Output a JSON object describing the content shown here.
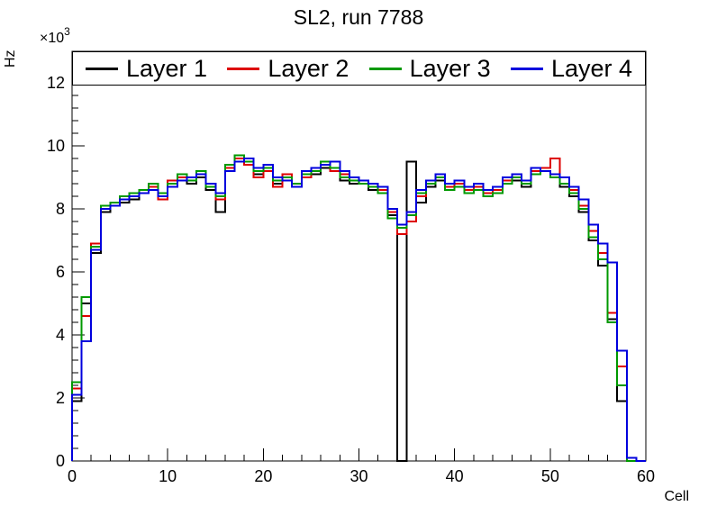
{
  "chart_data": {
    "type": "line",
    "style": "step-histogram",
    "title": "SL2, run 7788",
    "xlabel": "Cell",
    "ylabel": "Hz",
    "y_multiplier": {
      "base": "×10",
      "exp": "3"
    },
    "xlim": [
      0,
      60
    ],
    "ylim": [
      0,
      13
    ],
    "xticks": [
      0,
      10,
      20,
      30,
      40,
      50,
      60
    ],
    "yticks": [
      0,
      2,
      4,
      6,
      8,
      10,
      12
    ],
    "bin_width": 1,
    "grid": false,
    "legend_position": "top",
    "series": [
      {
        "name": "Layer 1",
        "color": "#000000",
        "values": [
          1.9,
          5.0,
          6.6,
          7.9,
          8.1,
          8.2,
          8.3,
          8.5,
          8.6,
          8.4,
          8.7,
          8.9,
          8.8,
          9.0,
          8.6,
          7.9,
          9.2,
          9.5,
          9.4,
          9.1,
          9.3,
          8.8,
          9.0,
          8.7,
          9.0,
          9.1,
          9.3,
          9.2,
          8.9,
          8.8,
          8.9,
          8.6,
          8.5,
          7.8,
          0.0,
          9.5,
          8.2,
          8.7,
          8.9,
          8.6,
          8.7,
          8.5,
          8.8,
          8.4,
          8.5,
          8.8,
          8.9,
          8.7,
          9.1,
          9.2,
          9.0,
          8.7,
          8.4,
          7.9,
          7.0,
          6.2,
          4.5,
          1.9,
          0.0,
          0.0
        ]
      },
      {
        "name": "Layer 2",
        "color": "#dd0000",
        "values": [
          2.3,
          4.6,
          6.9,
          8.0,
          8.2,
          8.3,
          8.5,
          8.6,
          8.7,
          8.3,
          8.9,
          9.0,
          8.9,
          9.1,
          8.7,
          8.3,
          9.3,
          9.6,
          9.4,
          9.0,
          9.2,
          8.7,
          9.1,
          8.8,
          9.0,
          9.3,
          9.4,
          9.2,
          9.1,
          8.9,
          8.8,
          8.8,
          8.6,
          7.9,
          7.2,
          7.6,
          8.4,
          8.8,
          9.0,
          8.7,
          8.8,
          8.6,
          8.7,
          8.5,
          8.6,
          8.9,
          9.0,
          8.8,
          9.2,
          9.3,
          9.6,
          9.0,
          8.6,
          8.1,
          7.3,
          6.6,
          4.7,
          3.0,
          0.0,
          0.0
        ]
      },
      {
        "name": "Layer 3",
        "color": "#009900",
        "values": [
          2.5,
          5.2,
          6.8,
          8.1,
          8.2,
          8.4,
          8.5,
          8.6,
          8.8,
          8.5,
          8.8,
          9.1,
          8.9,
          9.2,
          8.7,
          8.4,
          9.4,
          9.7,
          9.5,
          9.2,
          9.3,
          8.9,
          9.0,
          8.8,
          9.1,
          9.2,
          9.5,
          9.3,
          9.0,
          8.9,
          8.8,
          8.7,
          8.5,
          7.7,
          7.4,
          7.8,
          8.5,
          8.8,
          9.0,
          8.6,
          8.7,
          8.5,
          8.6,
          8.4,
          8.5,
          8.8,
          9.0,
          8.8,
          9.1,
          9.2,
          9.0,
          8.8,
          8.5,
          8.0,
          7.1,
          6.4,
          4.4,
          2.4,
          0.0,
          0.0
        ]
      },
      {
        "name": "Layer 4",
        "color": "#0000dd",
        "values": [
          2.1,
          3.8,
          6.7,
          8.0,
          8.1,
          8.3,
          8.4,
          8.5,
          8.6,
          8.4,
          8.7,
          8.9,
          9.0,
          9.1,
          8.8,
          8.5,
          9.2,
          9.5,
          9.6,
          9.3,
          9.4,
          9.0,
          8.9,
          8.7,
          9.2,
          9.3,
          9.4,
          9.5,
          9.2,
          9.0,
          8.9,
          8.8,
          8.7,
          8.0,
          7.5,
          7.9,
          8.6,
          8.9,
          9.1,
          8.8,
          8.9,
          8.7,
          8.8,
          8.6,
          8.7,
          9.0,
          9.1,
          8.9,
          9.3,
          9.2,
          9.1,
          9.0,
          8.7,
          8.3,
          7.5,
          6.9,
          6.3,
          3.5,
          0.1,
          0.0
        ]
      }
    ]
  }
}
